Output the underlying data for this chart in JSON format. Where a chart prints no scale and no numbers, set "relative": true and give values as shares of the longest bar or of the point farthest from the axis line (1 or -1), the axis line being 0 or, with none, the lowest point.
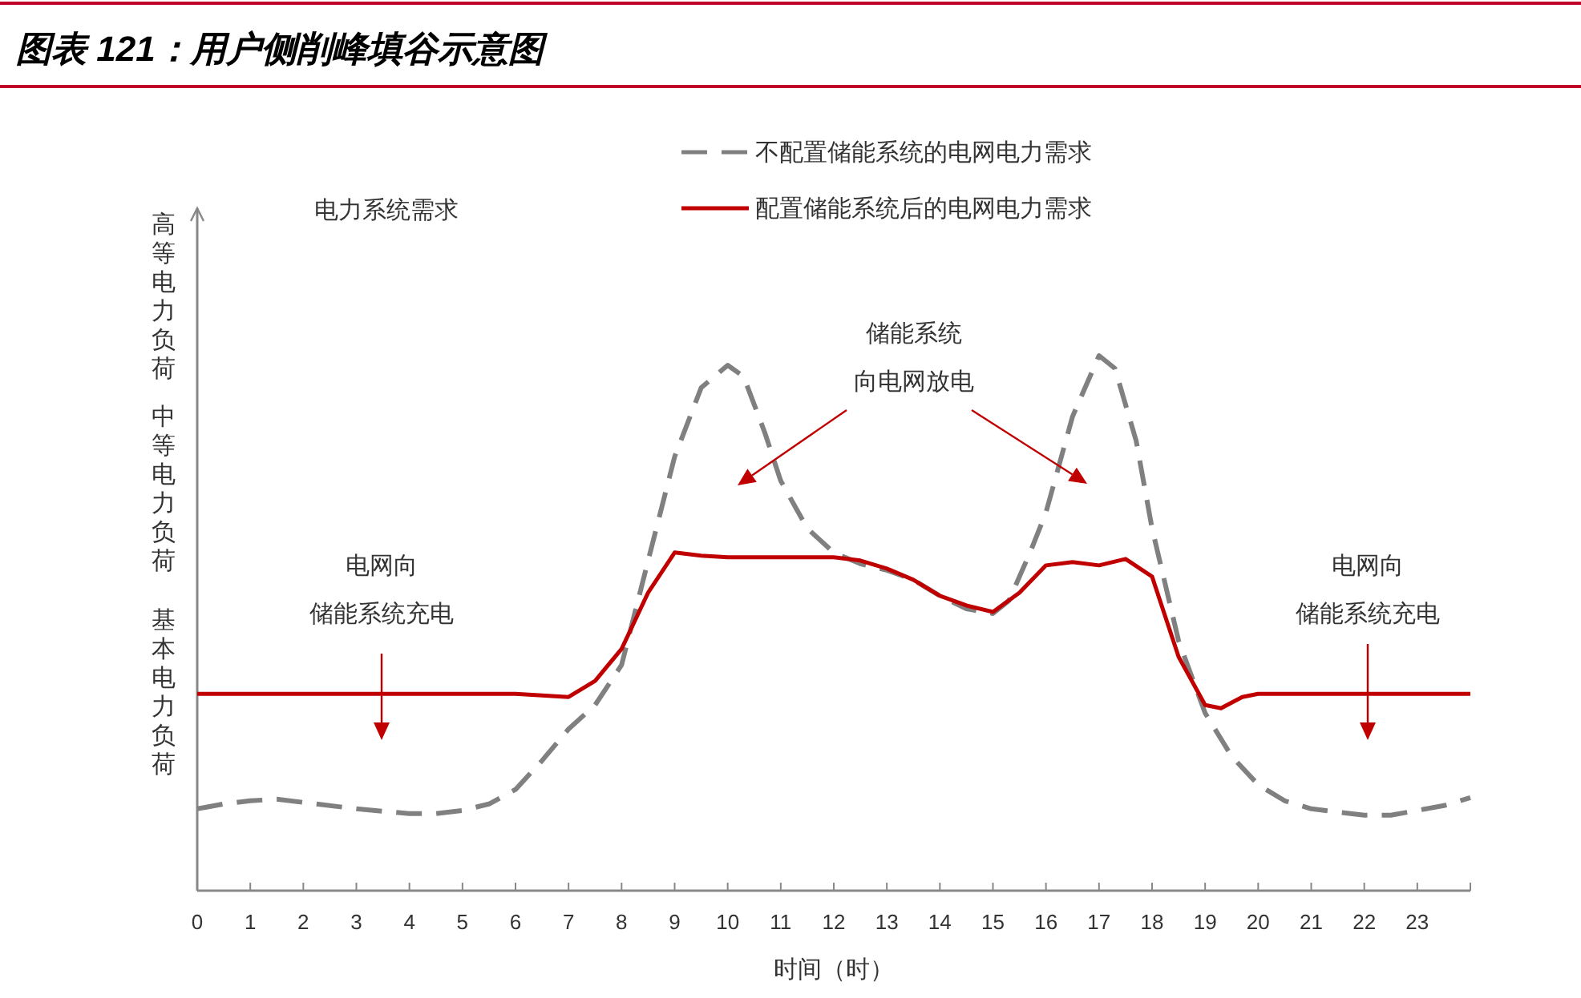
{
  "chart_data": {
    "type": "line",
    "title": "图表 121：用户侧削峰填谷示意图",
    "xlabel": "时间（时）",
    "relative": true,
    "legend": "top",
    "marker": "none",
    "xlim": [
      0,
      24
    ],
    "xticks": [
      0,
      1,
      2,
      3,
      4,
      5,
      6,
      7,
      8,
      9,
      10,
      11,
      12,
      13,
      14,
      15,
      16,
      17,
      18,
      19,
      20,
      21,
      22,
      23,
      {
        "value": 24,
        "label": null
      }
    ],
    "series": [
      {
        "name": "不配置储能系统的电网电力需求",
        "color": "#808080",
        "line_style": "dashed",
        "x": [
          0,
          0.5,
          1,
          1.5,
          2,
          3,
          4,
          4.5,
          5,
          5.5,
          6,
          6.5,
          7,
          7.5,
          8,
          8.5,
          9,
          9.5,
          10,
          10.3,
          10.7,
          11,
          11.5,
          12,
          12.5,
          13,
          13.5,
          14,
          14.5,
          15,
          15.3,
          15.7,
          16,
          16.5,
          17,
          17.3,
          17.7,
          18,
          18.5,
          19,
          19.5,
          20,
          20.5,
          21,
          22,
          22.5,
          23,
          23.5,
          24
        ],
        "values": [
          0.153,
          0.162,
          0.168,
          0.171,
          0.165,
          0.153,
          0.144,
          0.144,
          0.15,
          0.162,
          0.189,
          0.243,
          0.302,
          0.347,
          0.422,
          0.617,
          0.811,
          0.94,
          0.982,
          0.961,
          0.856,
          0.766,
          0.677,
          0.632,
          0.611,
          0.599,
          0.581,
          0.551,
          0.527,
          0.518,
          0.542,
          0.632,
          0.707,
          0.886,
          1,
          0.976,
          0.841,
          0.677,
          0.467,
          0.332,
          0.251,
          0.198,
          0.168,
          0.153,
          0.141,
          0.141,
          0.15,
          0.159,
          0.174
        ]
      },
      {
        "name": "配置储能系统后的电网电力需求",
        "color": "#c00000",
        "line_style": "solid",
        "x": [
          0,
          6,
          6.5,
          7,
          7.5,
          8,
          8.5,
          9,
          9.5,
          10,
          11,
          12,
          12.5,
          13,
          13.5,
          14,
          14.5,
          15,
          15.5,
          16,
          16.5,
          17,
          17.5,
          18,
          18.5,
          19,
          19.3,
          19.7,
          20,
          24
        ],
        "values": [
          0.368,
          0.368,
          0.365,
          0.362,
          0.392,
          0.452,
          0.557,
          0.632,
          0.626,
          0.623,
          0.623,
          0.623,
          0.617,
          0.602,
          0.581,
          0.551,
          0.533,
          0.521,
          0.557,
          0.608,
          0.614,
          0.608,
          0.62,
          0.587,
          0.437,
          0.347,
          0.341,
          0.362,
          0.368,
          0.368
        ]
      }
    ],
    "annotations": [
      "高等电力负荷",
      "中等电力负荷",
      "基本电力负荷",
      "电力系统需求",
      "电网向",
      "储能系统充电",
      "储能系统",
      "向电网放电",
      "电网向",
      "储能系统充电"
    ]
  }
}
